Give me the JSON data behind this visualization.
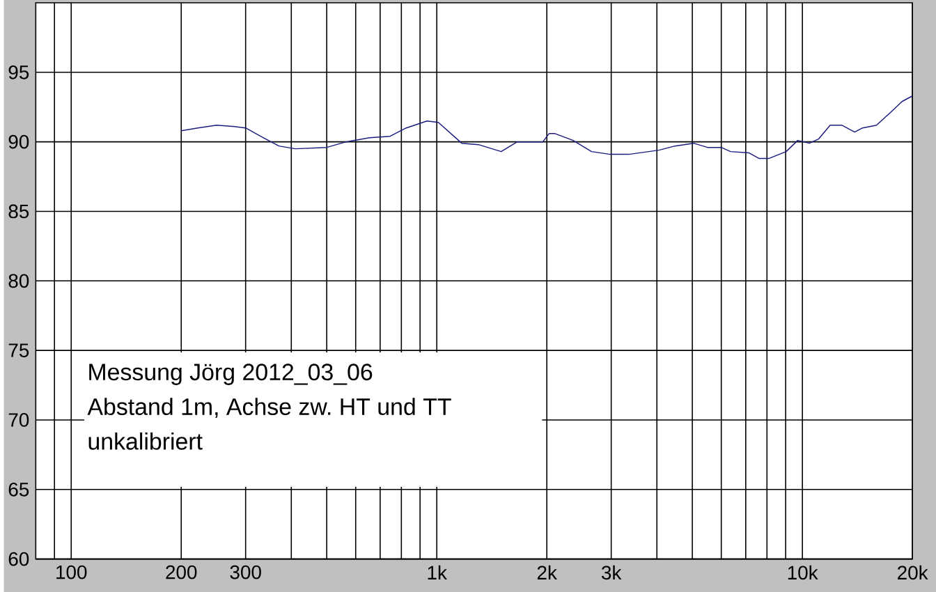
{
  "chart_data": {
    "type": "line",
    "x": [
      200,
      222,
      250,
      280,
      300,
      335,
      370,
      410,
      500,
      565,
      655,
      745,
      825,
      940,
      1010,
      1170,
      1300,
      1500,
      1660,
      1950,
      2030,
      2100,
      2360,
      2650,
      2980,
      3350,
      4050,
      4480,
      5040,
      5500,
      6000,
      6360,
      7150,
      7620,
      8090,
      9030,
      9710,
      10450,
      11070,
      11910,
      12810,
      13900,
      14610,
      15950,
      17400,
      18730,
      20000
    ],
    "series": [
      {
        "color": "#1c1c80",
        "values": [
          90.8,
          91.0,
          91.2,
          91.1,
          91.0,
          90.3,
          89.7,
          89.5,
          89.6,
          90.0,
          90.3,
          90.4,
          91.0,
          91.5,
          91.4,
          89.9,
          89.8,
          89.3,
          90.0,
          90.0,
          90.6,
          90.6,
          90.1,
          89.3,
          89.1,
          89.1,
          89.4,
          89.7,
          89.9,
          89.6,
          89.6,
          89.3,
          89.2,
          88.8,
          88.8,
          89.3,
          90.1,
          89.9,
          90.2,
          91.2,
          91.2,
          90.7,
          91.0,
          91.2,
          92.1,
          92.9,
          93.3
        ]
      }
    ],
    "xlim": [
      80,
      20000
    ],
    "xticks": [
      {
        "value": 90,
        "label": null
      },
      100,
      200,
      300,
      {
        "value": 400,
        "label": null
      },
      {
        "value": 500,
        "label": null
      },
      {
        "value": 600,
        "label": null
      },
      {
        "value": 700,
        "label": null
      },
      {
        "value": 800,
        "label": null
      },
      {
        "value": 900,
        "label": null
      },
      {
        "value": 1000,
        "label": "1k"
      },
      {
        "value": 2000,
        "label": "2k"
      },
      {
        "value": 3000,
        "label": "3k"
      },
      {
        "value": 4000,
        "label": null
      },
      {
        "value": 5000,
        "label": null
      },
      {
        "value": 6000,
        "label": null
      },
      {
        "value": 7000,
        "label": null
      },
      {
        "value": 8000,
        "label": null
      },
      {
        "value": 9000,
        "label": null
      },
      {
        "value": 10000,
        "label": "10k"
      },
      {
        "value": 20000,
        "label": "20k"
      }
    ],
    "ylim": [
      60,
      100
    ],
    "yticks": [
      60,
      65,
      70,
      75,
      80,
      85,
      90,
      95
    ],
    "log": "x",
    "grid": true,
    "annotations": [
      "Messung Jörg 2012_03_06",
      "Abstand 1m, Achse zw. HT und TT",
      "unkalibriert"
    ]
  }
}
